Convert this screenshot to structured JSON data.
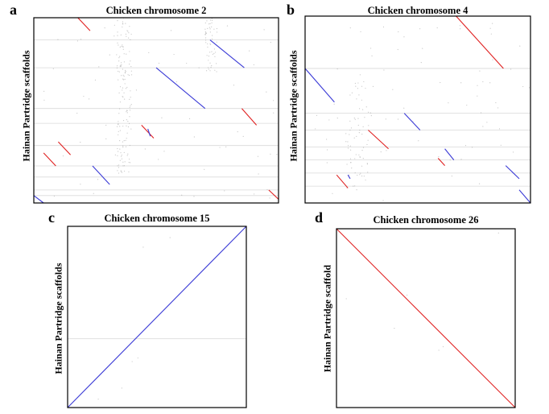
{
  "panels": [
    {
      "letter": "a",
      "title": "Chicken chromosome 2",
      "ylabel": "Hainan Partridge scaffolds"
    },
    {
      "letter": "b",
      "title": "Chicken chromosome 4",
      "ylabel": "Hainan Partridge scaffolds"
    },
    {
      "letter": "c",
      "title": "Chicken chromosome 15",
      "ylabel": "Hainan Partridge scaffolds"
    },
    {
      "letter": "d",
      "title": "Chicken chromosome 26",
      "ylabel": "Hainan Partridge scaffold"
    }
  ],
  "colors": {
    "forward": "#3b3bd6",
    "reverse": "#e02020",
    "scaffold_line": "#d9d9d9",
    "noise": "#9a9a9a",
    "frame": "#000000"
  },
  "chart_data": [
    {
      "type": "scatter",
      "title": "Chicken chromosome 2",
      "xlabel": "",
      "ylabel": "Hainan Partridge scaffolds",
      "xlim": [
        0,
        1
      ],
      "ylim": [
        0,
        1
      ],
      "scaffold_boundaries": [
        0.12,
        0.27,
        0.49,
        0.57,
        0.69,
        0.8,
        0.86,
        0.93,
        0.96
      ],
      "segments": [
        {
          "orientation": "reverse",
          "x": [
            0.18,
            0.23
          ],
          "y": [
            0.0,
            0.07
          ]
        },
        {
          "orientation": "forward",
          "x": [
            0.72,
            0.86
          ],
          "y": [
            0.12,
            0.27
          ]
        },
        {
          "orientation": "forward",
          "x": [
            0.5,
            0.7
          ],
          "y": [
            0.27,
            0.49
          ]
        },
        {
          "orientation": "reverse",
          "x": [
            0.85,
            0.91
          ],
          "y": [
            0.49,
            0.58
          ]
        },
        {
          "orientation": "reverse",
          "x": [
            0.44,
            0.49
          ],
          "y": [
            0.58,
            0.65
          ]
        },
        {
          "orientation": "forward",
          "x": [
            0.466,
            0.476
          ],
          "y": [
            0.6,
            0.64
          ]
        },
        {
          "orientation": "reverse",
          "x": [
            0.1,
            0.15
          ],
          "y": [
            0.67,
            0.74
          ]
        },
        {
          "orientation": "reverse",
          "x": [
            0.04,
            0.09
          ],
          "y": [
            0.73,
            0.8
          ]
        },
        {
          "orientation": "forward",
          "x": [
            0.24,
            0.31
          ],
          "y": [
            0.8,
            0.9
          ]
        },
        {
          "orientation": "reverse",
          "x": [
            0.96,
            1.0
          ],
          "y": [
            0.93,
            0.98
          ]
        },
        {
          "orientation": "forward",
          "x": [
            0.0,
            0.04
          ],
          "y": [
            0.96,
            1.0
          ]
        }
      ]
    },
    {
      "type": "scatter",
      "title": "Chicken chromosome 4",
      "xlabel": "",
      "ylabel": "Hainan Partridge scaffolds",
      "xlim": [
        0,
        1
      ],
      "ylim": [
        0,
        1
      ],
      "scaffold_boundaries": [
        0.28,
        0.52,
        0.61,
        0.7,
        0.77,
        0.84,
        0.91
      ],
      "segments": [
        {
          "orientation": "reverse",
          "x": [
            0.67,
            0.88
          ],
          "y": [
            0.0,
            0.28
          ]
        },
        {
          "orientation": "forward",
          "x": [
            0.0,
            0.13
          ],
          "y": [
            0.28,
            0.46
          ]
        },
        {
          "orientation": "forward",
          "x": [
            0.44,
            0.51
          ],
          "y": [
            0.52,
            0.61
          ]
        },
        {
          "orientation": "reverse",
          "x": [
            0.28,
            0.37
          ],
          "y": [
            0.61,
            0.71
          ]
        },
        {
          "orientation": "forward",
          "x": [
            0.62,
            0.66
          ],
          "y": [
            0.71,
            0.77
          ]
        },
        {
          "orientation": "reverse",
          "x": [
            0.59,
            0.62
          ],
          "y": [
            0.76,
            0.8
          ]
        },
        {
          "orientation": "forward",
          "x": [
            0.89,
            0.95
          ],
          "y": [
            0.8,
            0.87
          ]
        },
        {
          "orientation": "reverse",
          "x": [
            0.14,
            0.19
          ],
          "y": [
            0.85,
            0.92
          ]
        },
        {
          "orientation": "forward",
          "x": [
            0.19,
            0.2
          ],
          "y": [
            0.85,
            0.87
          ]
        },
        {
          "orientation": "forward",
          "x": [
            0.95,
            1.0
          ],
          "y": [
            0.93,
            1.0
          ]
        }
      ]
    },
    {
      "type": "scatter",
      "title": "Chicken chromosome 15",
      "xlabel": "",
      "ylabel": "Hainan Partridge scaffolds",
      "xlim": [
        0,
        1
      ],
      "ylim": [
        0,
        1
      ],
      "scaffold_boundaries": [
        0.62
      ],
      "segments": [
        {
          "orientation": "forward",
          "x": [
            0.0,
            1.0
          ],
          "y": [
            1.0,
            0.0
          ]
        }
      ]
    },
    {
      "type": "scatter",
      "title": "Chicken chromosome 26",
      "xlabel": "",
      "ylabel": "Hainan Partridge scaffold",
      "xlim": [
        0,
        1
      ],
      "ylim": [
        0,
        1
      ],
      "scaffold_boundaries": [],
      "segments": [
        {
          "orientation": "reverse",
          "x": [
            0.0,
            1.0
          ],
          "y": [
            0.0,
            1.0
          ]
        }
      ]
    }
  ]
}
